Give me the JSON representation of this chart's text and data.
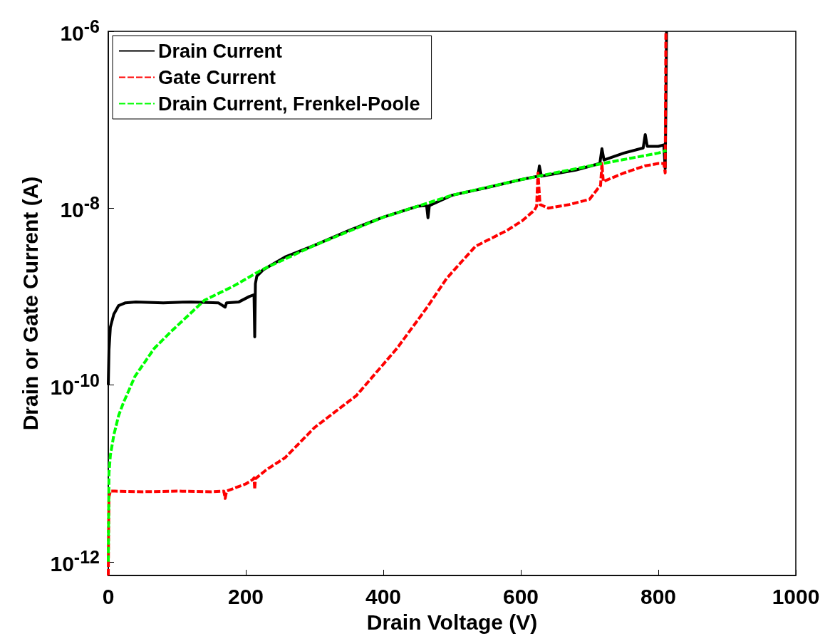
{
  "chart_data": {
    "type": "line",
    "xlabel": "Drain Voltage (V)",
    "ylabel": "Drain or Gate Current (A)",
    "log": "y",
    "grid": false,
    "legend": "top left",
    "marker": "none",
    "xlim": [
      0,
      1000
    ],
    "xticks": [
      0,
      200,
      400,
      600,
      800,
      1000
    ],
    "ylim": [
      7e-13,
      1e-06
    ],
    "yticks": [
      {
        "value": 1e-12,
        "label": "10$^{-12}$"
      },
      {
        "value": 1e-10,
        "label": "10$^{-10}$"
      },
      {
        "value": 1e-08,
        "label": "10$^{-8}$"
      },
      {
        "value": 1e-06,
        "label": "10$^{-6}$"
      }
    ],
    "series": [
      {
        "name": "Drain Current",
        "color": "#000000",
        "line_style": "solid",
        "x": [
          0,
          1,
          3,
          8,
          15,
          25,
          40,
          80,
          120,
          160,
          170,
          172,
          190,
          205,
          212,
          213,
          214,
          216,
          225,
          257,
          300,
          350,
          400,
          450,
          463,
          465,
          467,
          500,
          550,
          600,
          625,
          627,
          630,
          680,
          715,
          718,
          721,
          750,
          778,
          781,
          784,
          800,
          808,
          810,
          811,
          812
        ],
        "values": [
          1e-10,
          2.5e-10,
          4.5e-10,
          6.3e-10,
          7.9e-10,
          8.5e-10,
          8.7e-10,
          8.5e-10,
          8.7e-10,
          8.5e-10,
          7.6e-10,
          8.5e-10,
          8.7e-10,
          1e-09,
          1.05e-09,
          3.5e-10,
          1.4e-09,
          1.7e-09,
          2e-09,
          2.8e-09,
          3.8e-09,
          5.6e-09,
          7.9e-09,
          1.05e-08,
          1.07e-08,
          7.8e-09,
          1.07e-08,
          1.4e-08,
          1.7e-08,
          2.1e-08,
          2.3e-08,
          3e-08,
          2.3e-08,
          2.7e-08,
          3.2e-08,
          4.7e-08,
          3.5e-08,
          4.2e-08,
          4.8e-08,
          6.8e-08,
          5e-08,
          5e-08,
          5.2e-08,
          2.8e-08,
          1.3e-07,
          1e-06
        ]
      },
      {
        "name": "Gate Current",
        "color": "#ff0000",
        "line_style": "dashed",
        "x": [
          0,
          0.5,
          1,
          3,
          10,
          50,
          100,
          150,
          168,
          170,
          172,
          200,
          210,
          212,
          213,
          214,
          230,
          257,
          300,
          361,
          420,
          464,
          492,
          534,
          580,
          602,
          620,
          623,
          625,
          628,
          640,
          671,
          700,
          713,
          716,
          718,
          720,
          750,
          780,
          800,
          808,
          810,
          811
        ],
        "values": [
          7e-13,
          2.5e-12,
          5.4e-12,
          6.3e-12,
          6.3e-12,
          6.2e-12,
          6.3e-12,
          6.2e-12,
          6.3e-12,
          5.2e-12,
          6.3e-12,
          7.6e-12,
          8.5e-12,
          8.9e-12,
          6.6e-12,
          8.7e-12,
          1.1e-11,
          1.5e-11,
          3.3e-11,
          7.6e-11,
          2.6e-10,
          7.6e-10,
          1.6e-09,
          3.7e-09,
          5.6e-09,
          7.2e-09,
          9.5e-09,
          1.05e-08,
          2.5e-08,
          1.1e-08,
          1e-08,
          1.1e-08,
          1.26e-08,
          1.7e-08,
          1.8e-08,
          3.2e-08,
          2e-08,
          2.5e-08,
          3e-08,
          3.2e-08,
          3.2e-08,
          2.5e-08,
          1e-06
        ]
      },
      {
        "name": "Drain Current, Frenkel-Poole",
        "color": "#00ff00",
        "line_style": "dashed",
        "x": [
          0,
          0.5,
          1,
          3,
          8,
          15,
          22,
          39,
          67,
          91,
          140,
          181,
          223,
          300,
          400,
          500,
          600,
          700,
          800,
          812
        ],
        "values": [
          1e-12,
          3.2e-12,
          1e-11,
          1.6e-11,
          2.7e-11,
          4.5e-11,
          6.3e-11,
          1.26e-10,
          2.6e-10,
          4e-10,
          9.1e-10,
          1.3e-09,
          2e-09,
          3.8e-09,
          7.9e-09,
          1.4e-08,
          2.1e-08,
          3e-08,
          4.2e-08,
          4.5e-08
        ]
      }
    ]
  }
}
